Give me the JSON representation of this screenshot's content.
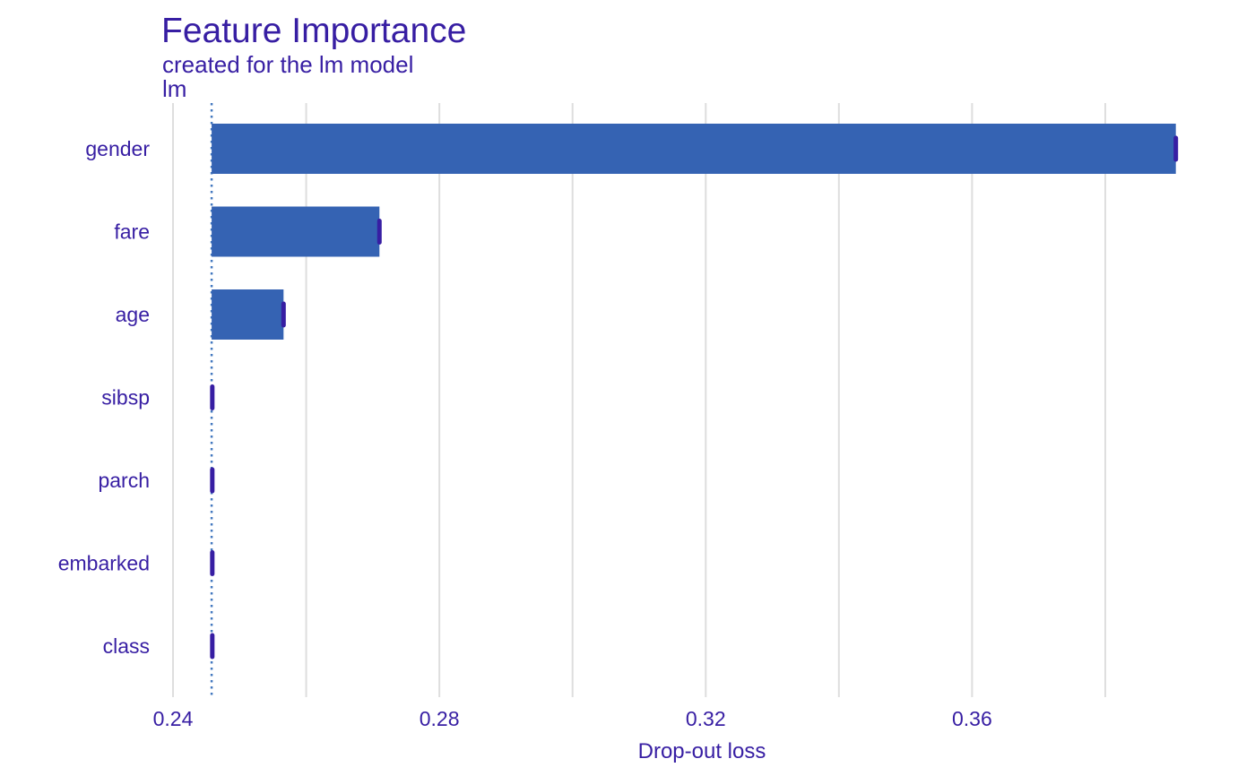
{
  "colors": {
    "text": "#371ea3",
    "bar": "#3563b3",
    "whisker": "#371ea3",
    "grid": "#dedede",
    "baseline": "#4378bf"
  },
  "title": "Feature Importance",
  "subtitle": "created for the lm model",
  "facet_label": "lm",
  "chart_data": {
    "type": "bar",
    "orientation": "horizontal",
    "baseline": 0.2458,
    "categories": [
      "gender",
      "fare",
      "age",
      "sibsp",
      "parch",
      "embarked",
      "class"
    ],
    "values": [
      0.3906,
      0.271,
      0.2566,
      0.2459,
      0.2459,
      0.2459,
      0.2459
    ],
    "xlabel": "Drop-out loss",
    "ylabel": "",
    "xlim": [
      0.24,
      0.3932
    ],
    "xticks": [
      {
        "value": 0.24,
        "label": "0.24"
      },
      {
        "value": 0.28,
        "label": "0.28"
      },
      {
        "value": 0.32,
        "label": "0.32"
      },
      {
        "value": 0.36,
        "label": "0.36"
      }
    ],
    "minor_gridlines": [
      0.26,
      0.3,
      0.34,
      0.38
    ],
    "grid": true,
    "legend": "none"
  }
}
